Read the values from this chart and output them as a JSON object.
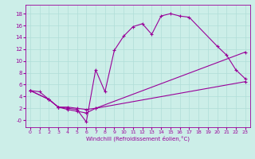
{
  "xlabel": "Windchill (Refroidissement éolien,°C)",
  "bg_color": "#cceee8",
  "line_color": "#990099",
  "grid_color": "#b0ddd8",
  "x_ticks": [
    0,
    1,
    2,
    3,
    4,
    5,
    6,
    7,
    8,
    9,
    10,
    11,
    12,
    13,
    14,
    15,
    16,
    17,
    18,
    19,
    20,
    21,
    22,
    23
  ],
  "y_ticks": [
    0,
    2,
    4,
    6,
    8,
    10,
    12,
    14,
    16,
    18
  ],
  "ylim": [
    -1.2,
    19.5
  ],
  "xlim": [
    -0.5,
    23.5
  ],
  "line1": {
    "x": [
      0,
      1,
      2,
      3,
      4,
      5,
      6,
      7,
      8,
      9,
      10,
      11,
      12,
      13,
      14,
      15,
      16,
      17,
      20,
      21,
      22,
      23
    ],
    "y": [
      5.0,
      4.8,
      3.5,
      2.2,
      2.0,
      1.8,
      -0.3,
      8.5,
      4.8,
      11.8,
      14.2,
      15.8,
      16.3,
      14.5,
      17.6,
      18.0,
      17.6,
      17.4,
      12.5,
      11.0,
      8.5,
      7.0
    ]
  },
  "line2": {
    "x": [
      0,
      2,
      3,
      4,
      5,
      6,
      7,
      23
    ],
    "y": [
      5.0,
      3.5,
      2.2,
      2.2,
      2.0,
      1.8,
      2.0,
      11.5
    ]
  },
  "line3": {
    "x": [
      0,
      2,
      3,
      4,
      5,
      6,
      7,
      23
    ],
    "y": [
      5.0,
      3.5,
      2.2,
      1.8,
      1.5,
      1.2,
      2.0,
      6.5
    ]
  }
}
